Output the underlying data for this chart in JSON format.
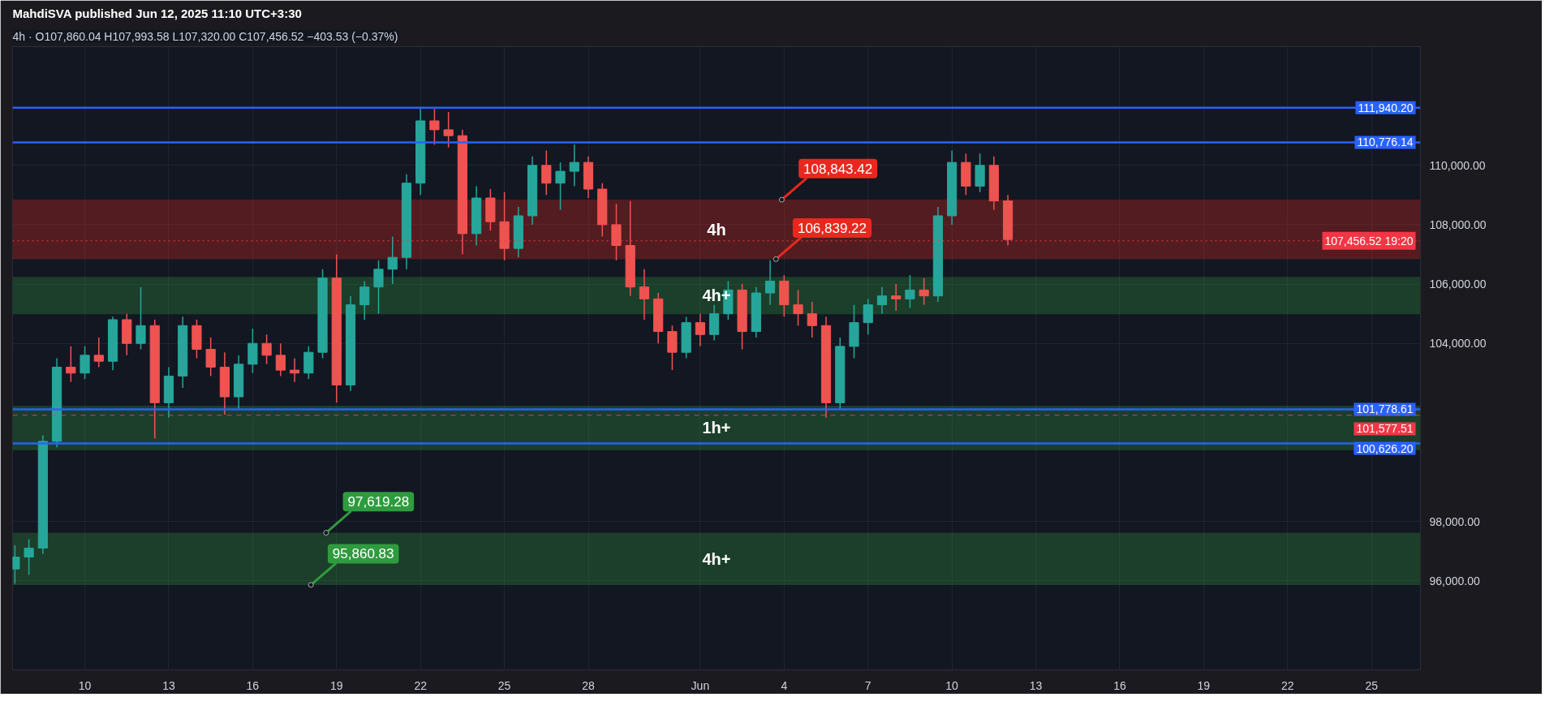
{
  "chart_data": {
    "type": "candlestick",
    "title": "MahdiSVA published Jun 12, 2025 11:10 UTC+3:30",
    "subtitle": "4h · O107,860.04 H107,993.58 L107,320.00 C107,456.52 −403.53 (−0.37%)",
    "colors": [
      "#26a69a",
      "#26a69a",
      "#26a69a",
      "#26a69a",
      "#ef5350",
      "#26a69a",
      "#ef5350",
      "#26a69a",
      "#ef5350",
      "#26a69a",
      "#ef5350",
      "#26a69a",
      "#26a69a",
      "#ef5350",
      "#ef5350",
      "#ef5350",
      "#26a69a",
      "#26a69a",
      "#ef5350",
      "#ef5350",
      "#ef5350",
      "#26a69a",
      "#26a69a",
      "#ef5350",
      "#26a69a",
      "#26a69a",
      "#26a69a",
      "#26a69a",
      "#26a69a",
      "#26a69a",
      "#ef5350",
      "#ef5350",
      "#ef5350",
      "#26a69a",
      "#ef5350",
      "#ef5350",
      "#26a69a",
      "#26a69a",
      "#ef5350",
      "#26a69a",
      "#26a69a",
      "#ef5350",
      "#ef5350",
      "#ef5350",
      "#ef5350",
      "#ef5350",
      "#ef5350",
      "#ef5350",
      "#26a69a",
      "#ef5350",
      "#26a69a",
      "#26a69a",
      "#ef5350",
      "#26a69a",
      "#26a69a",
      "#ef5350",
      "#ef5350",
      "#ef5350",
      "#ef5350",
      "#26a69a",
      "#26a69a",
      "#26a69a",
      "#26a69a",
      "#ef5350",
      "#26a69a",
      "#ef5350",
      "#26a69a",
      "#26a69a",
      "#ef5350",
      "#26a69a",
      "#ef5350",
      "#ef5350"
    ],
    "x": [
      "2025-05-07T12:00",
      "2025-05-08T00:00",
      "2025-05-08T12:00",
      "2025-05-09T00:00",
      "2025-05-09T12:00",
      "2025-05-10T00:00",
      "2025-05-10T12:00",
      "2025-05-11T00:00",
      "2025-05-11T12:00",
      "2025-05-12T00:00",
      "2025-05-12T12:00",
      "2025-05-13T00:00",
      "2025-05-13T12:00",
      "2025-05-14T00:00",
      "2025-05-14T12:00",
      "2025-05-15T00:00",
      "2025-05-15T12:00",
      "2025-05-16T00:00",
      "2025-05-16T12:00",
      "2025-05-17T00:00",
      "2025-05-17T12:00",
      "2025-05-18T00:00",
      "2025-05-18T12:00",
      "2025-05-19T00:00",
      "2025-05-19T12:00",
      "2025-05-20T00:00",
      "2025-05-20T12:00",
      "2025-05-21T00:00",
      "2025-05-21T12:00",
      "2025-05-22T00:00",
      "2025-05-22T12:00",
      "2025-05-23T00:00",
      "2025-05-23T12:00",
      "2025-05-24T00:00",
      "2025-05-24T12:00",
      "2025-05-25T00:00",
      "2025-05-25T12:00",
      "2025-05-26T00:00",
      "2025-05-26T12:00",
      "2025-05-27T00:00",
      "2025-05-27T12:00",
      "2025-05-28T00:00",
      "2025-05-28T12:00",
      "2025-05-29T00:00",
      "2025-05-29T12:00",
      "2025-05-30T00:00",
      "2025-05-30T12:00",
      "2025-05-31T00:00",
      "2025-05-31T12:00",
      "2025-06-01T00:00",
      "2025-06-01T12:00",
      "2025-06-02T00:00",
      "2025-06-02T12:00",
      "2025-06-03T00:00",
      "2025-06-03T12:00",
      "2025-06-04T00:00",
      "2025-06-04T12:00",
      "2025-06-05T00:00",
      "2025-06-05T12:00",
      "2025-06-06T00:00",
      "2025-06-06T12:00",
      "2025-06-07T00:00",
      "2025-06-07T12:00",
      "2025-06-08T00:00",
      "2025-06-08T12:00",
      "2025-06-09T00:00",
      "2025-06-09T12:00",
      "2025-06-10T00:00",
      "2025-06-10T12:00",
      "2025-06-11T00:00",
      "2025-06-11T12:00",
      "2025-06-12T00:00"
    ],
    "ohlc": [
      [
        96400,
        97200,
        95900,
        96800
      ],
      [
        96800,
        97400,
        96200,
        97100
      ],
      [
        97100,
        100900,
        96900,
        100700
      ],
      [
        100700,
        103500,
        100500,
        103200
      ],
      [
        103200,
        103900,
        102700,
        103000
      ],
      [
        103000,
        103900,
        102800,
        103600
      ],
      [
        103600,
        104200,
        103200,
        103400
      ],
      [
        103400,
        104900,
        103100,
        104800
      ],
      [
        104800,
        105000,
        103600,
        104000
      ],
      [
        104000,
        105900,
        103800,
        104600
      ],
      [
        104600,
        104800,
        100800,
        102000
      ],
      [
        102000,
        103200,
        101500,
        102900
      ],
      [
        102900,
        104900,
        102500,
        104600
      ],
      [
        104600,
        104800,
        103500,
        103800
      ],
      [
        103800,
        104200,
        102900,
        103200
      ],
      [
        103200,
        103700,
        101600,
        102200
      ],
      [
        102200,
        103600,
        101800,
        103300
      ],
      [
        103300,
        104500,
        103000,
        104000
      ],
      [
        104000,
        104300,
        103300,
        103600
      ],
      [
        103600,
        104000,
        102900,
        103100
      ],
      [
        103100,
        103500,
        102700,
        103000
      ],
      [
        103000,
        103900,
        102800,
        103700
      ],
      [
        103700,
        106500,
        103500,
        106200
      ],
      [
        106200,
        107000,
        102000,
        102600
      ],
      [
        102600,
        105600,
        102400,
        105300
      ],
      [
        105300,
        106100,
        104800,
        105900
      ],
      [
        105900,
        106800,
        105000,
        106500
      ],
      [
        106500,
        107600,
        106000,
        106900
      ],
      [
        106900,
        109700,
        106500,
        109400
      ],
      [
        109400,
        111900,
        109000,
        111500
      ],
      [
        111500,
        111900,
        110700,
        111200
      ],
      [
        111200,
        111800,
        110600,
        111000
      ],
      [
        111000,
        111200,
        107000,
        107700
      ],
      [
        107700,
        109300,
        107300,
        108900
      ],
      [
        108900,
        109200,
        107800,
        108100
      ],
      [
        108100,
        109100,
        106800,
        107200
      ],
      [
        107200,
        108600,
        106900,
        108300
      ],
      [
        108300,
        110300,
        108000,
        110000
      ],
      [
        110000,
        110500,
        109000,
        109400
      ],
      [
        109400,
        110100,
        108500,
        109800
      ],
      [
        109800,
        110700,
        109300,
        110100
      ],
      [
        110100,
        110300,
        108900,
        109200
      ],
      [
        109200,
        109400,
        107600,
        108000
      ],
      [
        108000,
        108700,
        106800,
        107300
      ],
      [
        107300,
        108800,
        105600,
        105900
      ],
      [
        105900,
        106500,
        104800,
        105500
      ],
      [
        105500,
        105700,
        104000,
        104400
      ],
      [
        104400,
        104600,
        103100,
        103700
      ],
      [
        103700,
        104900,
        103500,
        104700
      ],
      [
        104700,
        105000,
        103900,
        104300
      ],
      [
        104300,
        105300,
        104100,
        105000
      ],
      [
        105000,
        106100,
        104800,
        105800
      ],
      [
        105800,
        106000,
        103800,
        104400
      ],
      [
        104400,
        105900,
        104200,
        105700
      ],
      [
        105700,
        106800,
        105300,
        106100
      ],
      [
        106100,
        106300,
        104900,
        105300
      ],
      [
        105300,
        105800,
        104600,
        105000
      ],
      [
        105000,
        105400,
        104200,
        104600
      ],
      [
        104600,
        104900,
        101500,
        102000
      ],
      [
        102000,
        104200,
        101800,
        103900
      ],
      [
        103900,
        105300,
        103500,
        104700
      ],
      [
        104700,
        105500,
        104300,
        105300
      ],
      [
        105300,
        105900,
        105000,
        105600
      ],
      [
        105600,
        106000,
        105100,
        105500
      ],
      [
        105500,
        106300,
        105200,
        105800
      ],
      [
        105800,
        106200,
        105300,
        105600
      ],
      [
        105600,
        108600,
        105400,
        108300
      ],
      [
        108300,
        110500,
        108000,
        110100
      ],
      [
        110100,
        110400,
        109000,
        109300
      ],
      [
        109300,
        110400,
        109100,
        110000
      ],
      [
        110000,
        110300,
        108500,
        108800
      ],
      [
        108800,
        109000,
        107300,
        107500
      ]
    ],
    "xlim": [
      "2025-05-07T10:00",
      "2025-06-26T18:00"
    ],
    "xticks": [
      {
        "value": "2025-05-10",
        "label": "10"
      },
      {
        "value": "2025-05-13",
        "label": "13"
      },
      {
        "value": "2025-05-16",
        "label": "16"
      },
      {
        "value": "2025-05-19",
        "label": "19"
      },
      {
        "value": "2025-05-22",
        "label": "22"
      },
      {
        "value": "2025-05-25",
        "label": "25"
      },
      {
        "value": "2025-05-28",
        "label": "28"
      },
      {
        "value": "2025-06-01",
        "label": "Jun"
      },
      {
        "value": "2025-06-04",
        "label": "4"
      },
      {
        "value": "2025-06-07",
        "label": "7"
      },
      {
        "value": "2025-06-10",
        "label": "10"
      },
      {
        "value": "2025-06-13",
        "label": "13"
      },
      {
        "value": "2025-06-16",
        "label": "16"
      },
      {
        "value": "2025-06-19",
        "label": "19"
      },
      {
        "value": "2025-06-22",
        "label": "22"
      },
      {
        "value": "2025-06-25",
        "label": "25"
      }
    ],
    "ylim": [
      93000,
      114000
    ],
    "yticks": [
      {
        "value": 96000,
        "label": "96,000.00"
      },
      {
        "value": 98000,
        "label": "98,000.00"
      },
      {
        "value": 104000,
        "label": "104,000.00"
      },
      {
        "value": 106000,
        "label": "106,000.00"
      },
      {
        "value": 108000,
        "label": "108,000.00"
      },
      {
        "value": 110000,
        "label": "110,000.00"
      }
    ],
    "grid": true,
    "ref_lines": [
      {
        "axis": "y",
        "value": 111940.2,
        "label": "111,940.20",
        "color": "#2962ff",
        "line_style": "solid"
      },
      {
        "axis": "y",
        "value": 110776.14,
        "label": "110,776.14",
        "color": "#2962ff",
        "line_style": "solid"
      },
      {
        "axis": "y",
        "value": 107456.52,
        "label": "107,456.52 19:20",
        "color": "#f23645",
        "line_style": "dotted"
      },
      {
        "axis": "y",
        "value": 101778.61,
        "label": "101,778.61",
        "color": "#2962ff",
        "line_style": "solid"
      },
      {
        "axis": "y",
        "value": 101577.51,
        "label": "101,577.51",
        "color": "#f23645",
        "line_style": "dashed"
      },
      {
        "axis": "y",
        "value": 100626.2,
        "label": "100,626.20",
        "color": "#2962ff",
        "line_style": "solid"
      }
    ],
    "bands": [
      {
        "axis": "y",
        "from": 106839.22,
        "to": 108843.42,
        "label": "4h",
        "color": "#e8281e"
      },
      {
        "axis": "y",
        "from": 104980,
        "to": 106240,
        "label": "4h+",
        "color": "#2e9c3e"
      },
      {
        "axis": "y",
        "from": 100400,
        "to": 101900,
        "label": "1h+",
        "color": "#2e9c3e"
      },
      {
        "axis": "y",
        "from": 95860.83,
        "to": 97619.28,
        "label": "4h+",
        "color": "#2e9c3e"
      }
    ],
    "annotations": [
      {
        "text": "108,843.42",
        "x": "2025-06-03T22:00",
        "y": 108843.42
      },
      {
        "text": "106,839.22",
        "x": "2025-06-03T17:00",
        "y": 106839.22
      },
      {
        "text": "97,619.28",
        "x": "2025-05-18T15:00",
        "y": 97619.28
      },
      {
        "text": "95,860.83",
        "x": "2025-05-18T02:00",
        "y": 95860.83
      }
    ]
  }
}
